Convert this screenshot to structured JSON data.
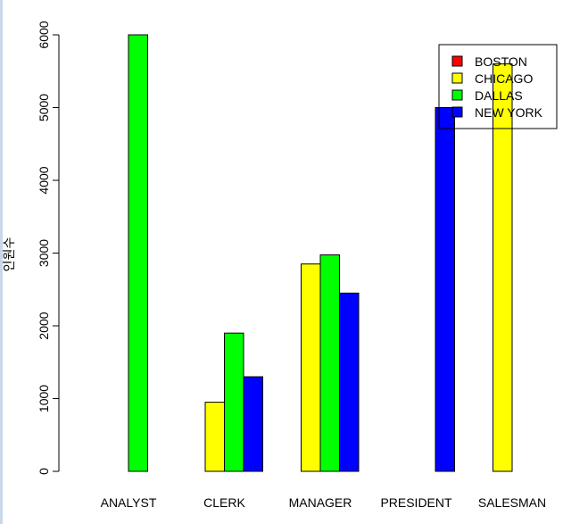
{
  "chart_data": {
    "type": "bar",
    "categories": [
      "ANALYST",
      "CLERK",
      "MANAGER",
      "PRESIDENT",
      "SALESMAN"
    ],
    "series": [
      {
        "name": "BOSTON",
        "color": "#ff0000",
        "values": [
          0,
          0,
          0,
          0,
          0
        ]
      },
      {
        "name": "CHICAGO",
        "color": "#ffff00",
        "values": [
          0,
          950,
          2850,
          0,
          5600
        ]
      },
      {
        "name": "DALLAS",
        "color": "#00ff00",
        "values": [
          6000,
          1900,
          2975,
          0,
          0
        ]
      },
      {
        "name": "NEW YORK",
        "color": "#0000ff",
        "values": [
          0,
          1300,
          2450,
          5000,
          0
        ]
      }
    ],
    "ylabel": "인원수",
    "xlabel": "",
    "title": "",
    "ylim": [
      0,
      6000
    ],
    "yticks": [
      0,
      1000,
      2000,
      3000,
      4000,
      5000,
      6000
    ],
    "grid": false,
    "legend_position": "top-right"
  }
}
